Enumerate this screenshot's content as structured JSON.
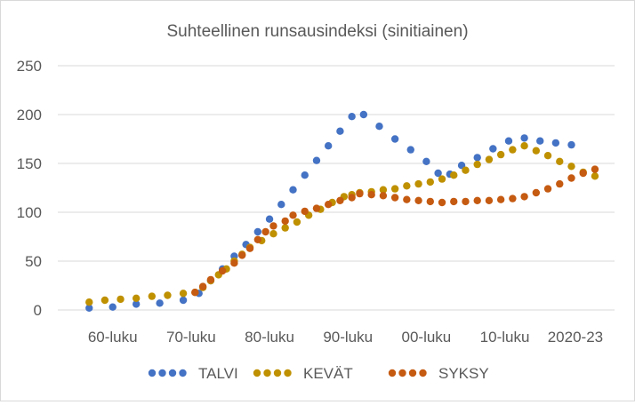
{
  "chart_data": {
    "type": "scatter",
    "title": "Suhteellinen runsausindeksi (sinitiainen)",
    "xlabel": "",
    "ylabel": "",
    "ylim": [
      0,
      250
    ],
    "yticks": [
      0,
      50,
      100,
      150,
      200,
      250
    ],
    "x_tick_labels": [
      "60-luku",
      "70-luku",
      "80-luku",
      "90-luku",
      "00-luku",
      "10-luku",
      "2020-23"
    ],
    "x_tick_positions": [
      1963,
      1973,
      1983,
      1993,
      2003,
      2013,
      2022
    ],
    "xlim": [
      1956,
      2027
    ],
    "grid": true,
    "legend_position": "bottom",
    "series": [
      {
        "name": "TALVI",
        "color": "#4472C4",
        "points": [
          [
            1960,
            2
          ],
          [
            1963,
            3
          ],
          [
            1966,
            6
          ],
          [
            1969,
            7
          ],
          [
            1972,
            10
          ],
          [
            1974,
            17
          ],
          [
            1975.5,
            30
          ],
          [
            1977,
            42
          ],
          [
            1978.5,
            55
          ],
          [
            1980,
            67
          ],
          [
            1981.5,
            80
          ],
          [
            1983,
            93
          ],
          [
            1984.5,
            108
          ],
          [
            1986,
            123
          ],
          [
            1987.5,
            138
          ],
          [
            1989,
            153
          ],
          [
            1990.5,
            168
          ],
          [
            1992,
            183
          ],
          [
            1993.5,
            198
          ],
          [
            1995,
            200
          ],
          [
            1997,
            188
          ],
          [
            1999,
            175
          ],
          [
            2001,
            164
          ],
          [
            2003,
            152
          ],
          [
            2004.5,
            140
          ],
          [
            2006,
            139
          ],
          [
            2007.5,
            148
          ],
          [
            2009.5,
            156
          ],
          [
            2011.5,
            165
          ],
          [
            2013.5,
            173
          ],
          [
            2015.5,
            176
          ],
          [
            2017.5,
            173
          ],
          [
            2019.5,
            171
          ],
          [
            2021.5,
            169
          ]
        ]
      },
      {
        "name": "KEVÄT",
        "color": "#BF9000",
        "points": [
          [
            1960,
            8
          ],
          [
            1962,
            10
          ],
          [
            1964,
            11
          ],
          [
            1966,
            12
          ],
          [
            1968,
            14
          ],
          [
            1970,
            15
          ],
          [
            1972,
            17
          ],
          [
            1973.5,
            18
          ],
          [
            1974.5,
            23
          ],
          [
            1975.5,
            30
          ],
          [
            1976.5,
            36
          ],
          [
            1977.5,
            42
          ],
          [
            1978.5,
            50
          ],
          [
            1979.5,
            57
          ],
          [
            1980.5,
            64
          ],
          [
            1982,
            71
          ],
          [
            1983.5,
            78
          ],
          [
            1985,
            84
          ],
          [
            1986.5,
            90
          ],
          [
            1988,
            97
          ],
          [
            1989.5,
            103
          ],
          [
            1991,
            110
          ],
          [
            1992.5,
            116
          ],
          [
            1993.5,
            118
          ],
          [
            1994.5,
            120
          ],
          [
            1996,
            121
          ],
          [
            1997.5,
            123
          ],
          [
            1999,
            124
          ],
          [
            2000.5,
            127
          ],
          [
            2002,
            129
          ],
          [
            2003.5,
            131
          ],
          [
            2005,
            134
          ],
          [
            2006.5,
            138
          ],
          [
            2008,
            143
          ],
          [
            2009.5,
            149
          ],
          [
            2011,
            154
          ],
          [
            2012.5,
            159
          ],
          [
            2014,
            164
          ],
          [
            2015.5,
            168
          ],
          [
            2017,
            163
          ],
          [
            2018.5,
            158
          ],
          [
            2020,
            152
          ],
          [
            2021.5,
            147
          ],
          [
            2023,
            141
          ],
          [
            2024.5,
            137
          ]
        ]
      },
      {
        "name": "SYKSY",
        "color": "#C55A11",
        "points": [
          [
            1973.5,
            18
          ],
          [
            1974.5,
            24
          ],
          [
            1975.5,
            31
          ],
          [
            1977,
            40
          ],
          [
            1978.5,
            48
          ],
          [
            1979.5,
            56
          ],
          [
            1980.5,
            63
          ],
          [
            1981.5,
            72
          ],
          [
            1982.5,
            80
          ],
          [
            1983.5,
            86
          ],
          [
            1985,
            91
          ],
          [
            1986,
            97
          ],
          [
            1987.5,
            101
          ],
          [
            1989,
            104
          ],
          [
            1990.5,
            108
          ],
          [
            1992,
            112
          ],
          [
            1993.5,
            115
          ],
          [
            1994.5,
            119
          ],
          [
            1996,
            118
          ],
          [
            1997.5,
            117
          ],
          [
            1999,
            115
          ],
          [
            2000.5,
            113
          ],
          [
            2002,
            112
          ],
          [
            2003.5,
            111
          ],
          [
            2005,
            110
          ],
          [
            2006.5,
            111
          ],
          [
            2008,
            111
          ],
          [
            2009.5,
            112
          ],
          [
            2011,
            112
          ],
          [
            2012.5,
            113
          ],
          [
            2014,
            114
          ],
          [
            2015.5,
            116
          ],
          [
            2017,
            120
          ],
          [
            2018.5,
            124
          ],
          [
            2020,
            129
          ],
          [
            2021.5,
            135
          ],
          [
            2023,
            140
          ],
          [
            2024.5,
            144
          ]
        ]
      }
    ]
  }
}
